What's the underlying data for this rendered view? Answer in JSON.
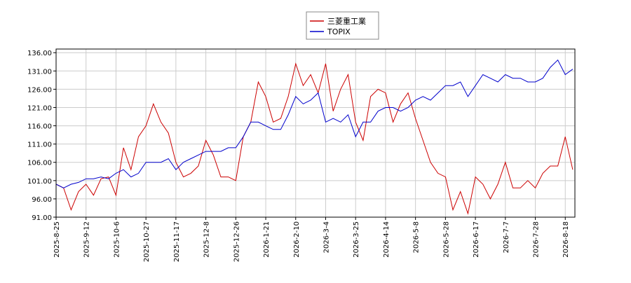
{
  "chart_data": {
    "type": "line",
    "categories": [
      "2025-8-25",
      null,
      null,
      null,
      "2025-9-12",
      null,
      null,
      null,
      "2025-10-6",
      null,
      null,
      null,
      "2025-10-27",
      null,
      null,
      null,
      "2025-11-17",
      null,
      null,
      null,
      "2025-12-8",
      null,
      null,
      null,
      "2025-12-26",
      null,
      null,
      null,
      "2026-1-21",
      null,
      null,
      null,
      "2026-2-10",
      null,
      null,
      null,
      "2026-3-4",
      null,
      null,
      null,
      "2026-3-25",
      null,
      null,
      null,
      "2026-4-14",
      null,
      null,
      null,
      "2026-5-8",
      null,
      null,
      null,
      "2026-5-28",
      null,
      null,
      null,
      "2026-6-17",
      null,
      null,
      null,
      "2026-7-7",
      null,
      null,
      null,
      "2026-7-28",
      null,
      null,
      null,
      "2026-8-18",
      null
    ],
    "series": [
      {
        "name": "三菱重工業",
        "color": "#cc0000",
        "values": [
          100,
          99,
          93,
          98,
          100,
          97,
          101.5,
          102,
          97,
          110,
          104,
          113,
          116,
          122,
          117,
          114,
          106,
          102,
          103,
          105,
          112,
          108,
          102,
          102,
          101,
          113,
          117,
          128,
          124,
          117,
          118,
          124,
          133,
          127,
          130,
          125,
          133,
          120,
          126,
          130,
          117,
          112,
          124,
          126,
          125,
          117,
          122,
          125,
          118,
          112,
          106,
          103,
          102,
          93,
          98,
          92,
          102,
          100,
          96,
          100,
          106,
          99,
          99,
          101,
          99,
          103,
          105,
          105,
          113,
          104
        ]
      },
      {
        "name": "TOPIX",
        "color": "#0000cc",
        "values": [
          100,
          99,
          100,
          100.5,
          101.5,
          101.5,
          102,
          101.5,
          103,
          104,
          102,
          103,
          106,
          106,
          106,
          107,
          104,
          106,
          107,
          108,
          109,
          109,
          109,
          110,
          110,
          113,
          117,
          117,
          116,
          115,
          115,
          119,
          124,
          122,
          123,
          125,
          117,
          118,
          117,
          119,
          113,
          117,
          117,
          120,
          121,
          121,
          120,
          121,
          123,
          124,
          123,
          125,
          127,
          127,
          128,
          124,
          127,
          130,
          129,
          128,
          130,
          129,
          129,
          128,
          128,
          129,
          132,
          134,
          130,
          131.5
        ]
      }
    ],
    "ylim": [
      91,
      137
    ],
    "yticks": [
      {
        "value": 91,
        "label": "91.00"
      },
      {
        "value": 96,
        "label": "96.00"
      },
      {
        "value": 101,
        "label": "101.00"
      },
      {
        "value": 106,
        "label": "106.00"
      },
      {
        "value": 111,
        "label": "111.00"
      },
      {
        "value": 116,
        "label": "116.00"
      },
      {
        "value": 121,
        "label": "121.00"
      },
      {
        "value": 126,
        "label": "126.00"
      },
      {
        "value": 131,
        "label": "131.00"
      },
      {
        "value": 136,
        "label": "136.00"
      }
    ],
    "grid": true
  }
}
